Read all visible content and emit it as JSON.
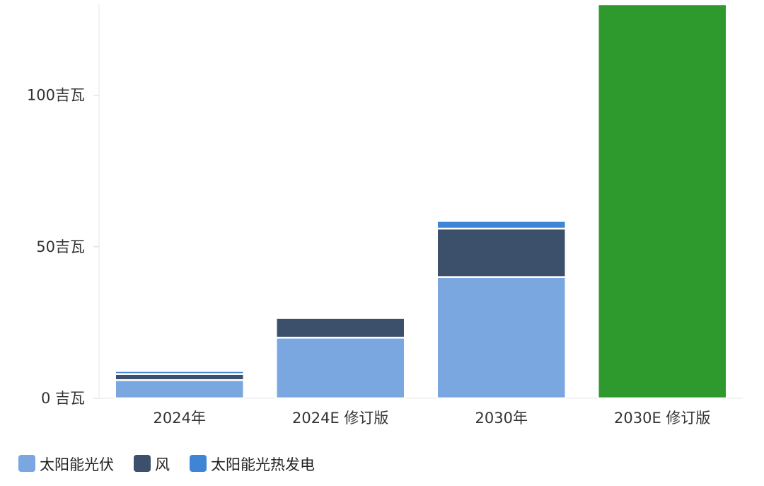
{
  "chart_data": {
    "type": "bar",
    "stacked": true,
    "categories": [
      "2024年",
      "2024E 修订版",
      "2030年",
      "2030E 修订版"
    ],
    "series": [
      {
        "name": "太阳能光伏",
        "values": [
          6,
          20,
          40,
          null
        ],
        "color": "#7aa7e0"
      },
      {
        "name": "风",
        "values": [
          2,
          6.5,
          16,
          null
        ],
        "color": "#3d506b"
      },
      {
        "name": "太阳能光热发电",
        "values": [
          1,
          0.5,
          2.5,
          null
        ],
        "color": "#3f85d6"
      },
      {
        "name": "",
        "values": [
          null,
          null,
          null,
          130
        ],
        "color": "#2e9a2e"
      }
    ],
    "yticks": [
      "0 吉瓦",
      "50吉瓦",
      "100吉瓦"
    ],
    "ytick_values": [
      0,
      50,
      100
    ],
    "ylim": [
      0,
      130
    ],
    "grid": false,
    "legend_position": "bottom-left"
  }
}
